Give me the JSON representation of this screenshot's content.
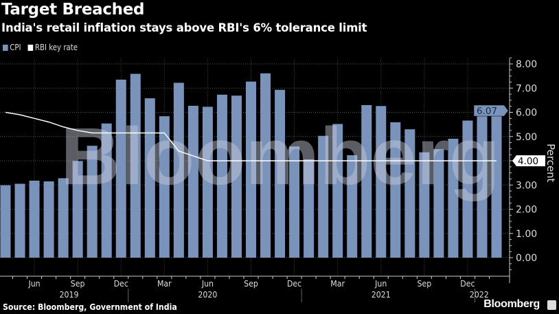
{
  "header": {
    "title": "Target Breached",
    "subtitle": "India's retail inflation stays above RBI's 6% tolerance limit"
  },
  "legend": [
    {
      "label": "CPI",
      "color": "#7a93bb"
    },
    {
      "label": "RBI key rate",
      "color": "#ffffff"
    }
  ],
  "footer": {
    "source": "Source: Bloomberg, Government of India",
    "brand": "Bloomberg",
    "watermark": "Bloomberg"
  },
  "chart_data": {
    "type": "bar",
    "title": "Target Breached",
    "subtitle": "India's retail inflation stays above RBI's 6% tolerance limit",
    "ylabel": "Percent",
    "ylim": [
      -0.7,
      8.3
    ],
    "yticks": [
      "0.00",
      "1.00",
      "2.00",
      "3.00",
      "4.00",
      "5.00",
      "6.00",
      "7.00",
      "8.00"
    ],
    "grid": true,
    "legend_placement": "top-left",
    "y_axis_side": "right",
    "categories": [
      "Apr 2019",
      "May 2019",
      "Jun 2019",
      "Jul 2019",
      "Aug 2019",
      "Sep 2019",
      "Oct 2019",
      "Nov 2019",
      "Dec 2019",
      "Jan 2020",
      "Feb 2020",
      "Mar 2020",
      "Apr 2020",
      "May 2020",
      "Jun 2020",
      "Jul 2020",
      "Aug 2020",
      "Sep 2020",
      "Oct 2020",
      "Nov 2020",
      "Dec 2020",
      "Jan 2021",
      "Feb 2021",
      "Mar 2021",
      "Apr 2021",
      "May 2021",
      "Jun 2021",
      "Jul 2021",
      "Aug 2021",
      "Sep 2021",
      "Oct 2021",
      "Nov 2021",
      "Dec 2021",
      "Jan 2022",
      "Feb 2022"
    ],
    "xtick_labels": [
      {
        "label": "Jun",
        "index": 2
      },
      {
        "label": "Sep",
        "index": 5
      },
      {
        "label": "Dec",
        "index": 8
      },
      {
        "label": "Mar",
        "index": 11
      },
      {
        "label": "Jun",
        "index": 14
      },
      {
        "label": "Sep",
        "index": 17
      },
      {
        "label": "Dec",
        "index": 20
      },
      {
        "label": "Mar",
        "index": 23
      },
      {
        "label": "Jun",
        "index": 26
      },
      {
        "label": "Sep",
        "index": 29
      },
      {
        "label": "Dec",
        "index": 32
      }
    ],
    "year_labels": [
      {
        "label": "2019",
        "index": 4.4
      },
      {
        "label": "2020",
        "index": 14
      },
      {
        "label": "2021",
        "index": 26
      },
      {
        "label": "2022",
        "index": 32.8
      }
    ],
    "series": [
      {
        "name": "CPI",
        "type": "bar",
        "color": "#7a93bb",
        "last_value_label": "6.07",
        "values": [
          2.99,
          3.05,
          3.18,
          3.15,
          3.28,
          3.99,
          4.62,
          5.54,
          7.35,
          7.59,
          6.58,
          5.84,
          7.22,
          6.27,
          6.23,
          6.73,
          6.69,
          7.27,
          7.61,
          6.93,
          4.59,
          4.06,
          5.03,
          5.52,
          4.23,
          6.3,
          6.26,
          5.59,
          5.3,
          4.35,
          4.48,
          4.91,
          5.66,
          6.01,
          6.07
        ]
      },
      {
        "name": "RBI key rate",
        "type": "line",
        "color": "#ffffff",
        "last_value_label": "4.00",
        "values": [
          6.0,
          5.9,
          5.75,
          5.6,
          5.4,
          5.25,
          5.15,
          5.15,
          5.15,
          5.15,
          5.15,
          5.15,
          4.4,
          4.2,
          4.0,
          4.0,
          4.0,
          4.0,
          4.0,
          4.0,
          4.0,
          4.0,
          4.0,
          4.0,
          4.0,
          4.0,
          4.0,
          4.0,
          4.0,
          4.0,
          4.0,
          4.0,
          4.0,
          4.0,
          4.0
        ]
      }
    ]
  }
}
